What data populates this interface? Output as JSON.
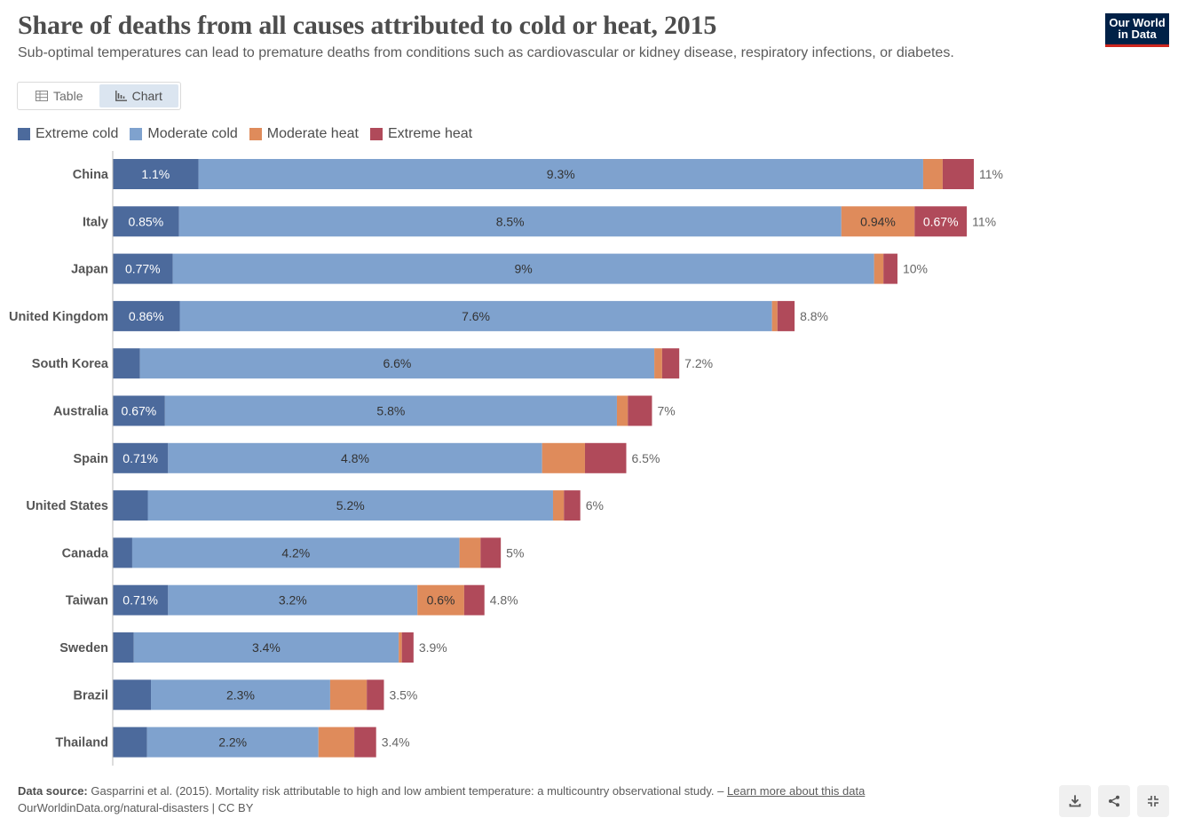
{
  "header": {
    "title": "Share of deaths from all causes attributed to cold or heat, 2015",
    "subtitle": "Sub-optimal temperatures can lead to premature deaths from conditions such as cardiovascular or kidney disease, respiratory infections, or diabetes.",
    "logo_line1": "Our World",
    "logo_line2": "in Data"
  },
  "tabs": {
    "table_label": "Table",
    "chart_label": "Chart"
  },
  "colors": {
    "extreme_cold": "#4c6a9c",
    "moderate_cold": "#7fa2ce",
    "moderate_heat": "#df8b5b",
    "extreme_heat": "#b04a5a"
  },
  "legend": [
    "Extreme cold",
    "Moderate cold",
    "Moderate heat",
    "Extreme heat"
  ],
  "chart_data": {
    "type": "bar",
    "orientation": "horizontal",
    "stacked": true,
    "title": "Share of deaths from all causes attributed to cold or heat, 2015",
    "unit": "%",
    "categories": [
      "China",
      "Italy",
      "Japan",
      "United Kingdom",
      "South Korea",
      "Australia",
      "Spain",
      "United States",
      "Canada",
      "Taiwan",
      "Sweden",
      "Brazil",
      "Thailand"
    ],
    "series": [
      {
        "name": "Extreme cold",
        "values": [
          1.1,
          0.85,
          0.77,
          0.86,
          0.35,
          0.67,
          0.71,
          0.45,
          0.25,
          0.71,
          0.27,
          0.49,
          0.44
        ],
        "labels": [
          "1.1%",
          "0.85%",
          "0.77%",
          "0.86%",
          "",
          "0.67%",
          "0.71%",
          "",
          "",
          "0.71%",
          "",
          "",
          ""
        ]
      },
      {
        "name": "Moderate cold",
        "values": [
          9.3,
          8.5,
          9,
          7.6,
          6.6,
          5.8,
          4.8,
          5.2,
          4.2,
          3.2,
          3.4,
          2.3,
          2.2
        ],
        "labels": [
          "9.3%",
          "8.5%",
          "9%",
          "7.6%",
          "6.6%",
          "5.8%",
          "4.8%",
          "5.2%",
          "4.2%",
          "3.2%",
          "3.4%",
          "2.3%",
          "2.2%"
        ]
      },
      {
        "name": "Moderate heat",
        "values": [
          0.25,
          0.94,
          0.12,
          0.07,
          0.1,
          0.14,
          0.55,
          0.14,
          0.27,
          0.6,
          0.04,
          0.47,
          0.46
        ],
        "labels": [
          "",
          "0.94%",
          "",
          "",
          "",
          "",
          "",
          "",
          "",
          "0.6%",
          "",
          "",
          ""
        ]
      },
      {
        "name": "Extreme heat",
        "values": [
          0.4,
          0.67,
          0.18,
          0.22,
          0.22,
          0.31,
          0.53,
          0.21,
          0.26,
          0.26,
          0.15,
          0.22,
          0.28
        ],
        "labels": [
          "",
          "0.67%",
          "",
          "",
          "",
          "",
          "",
          "",
          "",
          "",
          "",
          "",
          ""
        ]
      }
    ],
    "totals": [
      "11%",
      "11%",
      "10%",
      "8.8%",
      "7.2%",
      "7%",
      "6.5%",
      "6%",
      "5%",
      "4.8%",
      "3.9%",
      "3.5%",
      "3.4%"
    ],
    "xlim": [
      0,
      11.05
    ]
  },
  "footer": {
    "source_label": "Data source:",
    "source_text": "Gasparrini et al. (2015). Mortality risk attributable to high and low ambient temperature: a multicountry observational study. –",
    "learn_more": "Learn more about this data",
    "url_line": "OurWorldinData.org/natural-disasters | CC BY"
  },
  "actions": {
    "download_icon": "download-icon",
    "share_icon": "share-icon",
    "fullscreen_icon": "fullscreen-icon"
  }
}
